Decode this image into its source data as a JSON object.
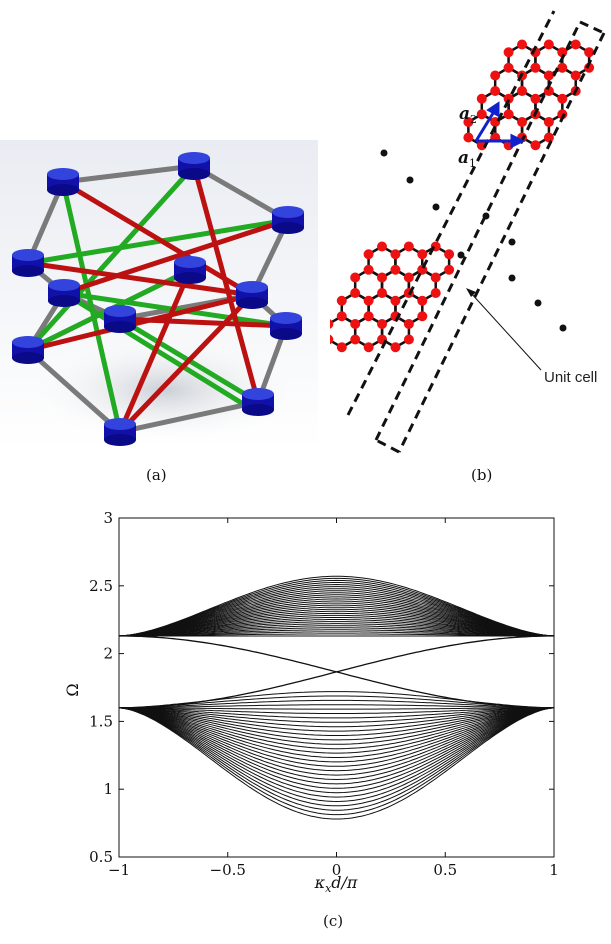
{
  "panel_a": {
    "caption": "(a)"
  },
  "panel_b": {
    "caption": "(b)",
    "vector1_label_main": "a",
    "vector1_label_sub": "1",
    "vector2_label_main": "a",
    "vector2_label_sub": "2",
    "annotation": "Unit cell",
    "colors": {
      "site": "#ee1111",
      "vector": "#1122cc",
      "bond": "#111111"
    }
  },
  "panel_c": {
    "caption": "(c)",
    "chart_data": {
      "type": "line",
      "xlabel_main": "κ",
      "xlabel_sub": "x",
      "xlabel_rest": "d/π",
      "ylabel": "Ω",
      "xlim": [
        -1,
        1
      ],
      "ylim": [
        0.5,
        3
      ],
      "xticks": [
        -1,
        -0.5,
        0,
        0.5,
        1
      ],
      "xtick_labels": [
        "−1",
        "−0.5",
        "0",
        "0.5",
        "1"
      ],
      "yticks": [
        0.5,
        1,
        1.5,
        2,
        2.5,
        3
      ],
      "ytick_labels": [
        "0.5",
        "1",
        "1.5",
        "2",
        "2.5",
        "3"
      ],
      "bands": {
        "upper": {
          "edge_value": 2.13,
          "max_top": 2.57,
          "max_bottom": 2.13,
          "count": 30
        },
        "lower": {
          "edge_value": 1.6,
          "min_bottom": 0.78,
          "min_top": 1.72,
          "count": 30
        }
      },
      "edge_modes": [
        {
          "x": [
            -1,
            0,
            1
          ],
          "y": [
            2.13,
            1.85,
            1.6
          ]
        },
        {
          "x": [
            -1,
            0,
            1
          ],
          "y": [
            1.6,
            1.85,
            2.13
          ]
        }
      ],
      "grid": false
    }
  }
}
